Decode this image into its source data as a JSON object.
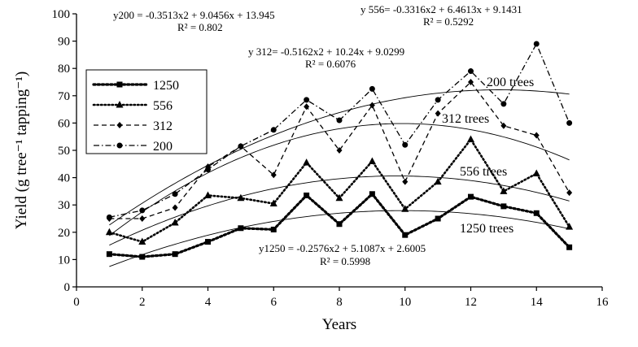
{
  "chart_data": {
    "type": "line",
    "xlabel": "Years",
    "ylabel": "Yield (g tree⁻¹ tapping⁻¹)",
    "xlim": [
      0,
      16
    ],
    "ylim": [
      0,
      100
    ],
    "xticks": [
      0,
      2,
      4,
      6,
      8,
      10,
      12,
      14,
      16
    ],
    "yticks": [
      0,
      10,
      20,
      30,
      40,
      50,
      60,
      70,
      80,
      90,
      100
    ],
    "x": [
      1,
      2,
      3,
      4,
      5,
      6,
      7,
      8,
      9,
      10,
      11,
      12,
      13,
      14,
      15
    ],
    "legend_position": "left",
    "series": [
      {
        "name": "1250",
        "marker": "square",
        "dash": "dotted-heavy",
        "values": [
          12,
          11,
          12,
          16.5,
          21.5,
          21,
          33.5,
          23,
          34,
          19,
          25,
          33,
          29.5,
          27,
          14.5
        ],
        "trend": {
          "a": -0.2576,
          "b": 5.1087,
          "c": 2.6005
        },
        "trend_label": "1250 trees",
        "equation": "y1250 = -0.2576x2 + 5.1087x + 2.6005",
        "r2": "R² = 0.5998"
      },
      {
        "name": "556",
        "marker": "triangle",
        "dash": "dotted",
        "values": [
          20,
          16.5,
          23.5,
          33.5,
          32.5,
          30.5,
          45.5,
          32.5,
          46,
          28.5,
          38.5,
          54,
          35,
          41.5,
          22
        ],
        "trend": {
          "a": -0.3316,
          "b": 6.4613,
          "c": 9.1431
        },
        "trend_label": "556 trees",
        "equation": "y 556= -0.3316x2 + 6.4613x + 9.1431",
        "r2": "R² = 0.5292"
      },
      {
        "name": "312",
        "marker": "diamond",
        "dash": "dashed",
        "values": [
          25,
          25,
          29,
          44,
          51.5,
          41,
          66,
          50,
          66.5,
          38.5,
          63.5,
          75,
          59,
          55.5,
          34.5
        ],
        "trend": {
          "a": -0.5162,
          "b": 10.24,
          "c": 9.0299
        },
        "trend_label": "312 trees",
        "equation": "y 312= -0.5162x2 + 10.24x + 9.0299",
        "r2": "R² = 0.6076"
      },
      {
        "name": "200",
        "marker": "circle",
        "dash": "dashdot",
        "values": [
          25.5,
          28,
          34,
          43,
          51.5,
          57.5,
          68.5,
          61,
          72.5,
          52,
          68.5,
          79,
          67,
          89,
          60
        ],
        "trend": {
          "a": -0.3513,
          "b": 9.0456,
          "c": 13.945
        },
        "trend_label": "200 trees",
        "equation": "y200 = -0.3513x2 + 9.0456x + 13.945",
        "r2": "R² = 0.802"
      }
    ]
  }
}
